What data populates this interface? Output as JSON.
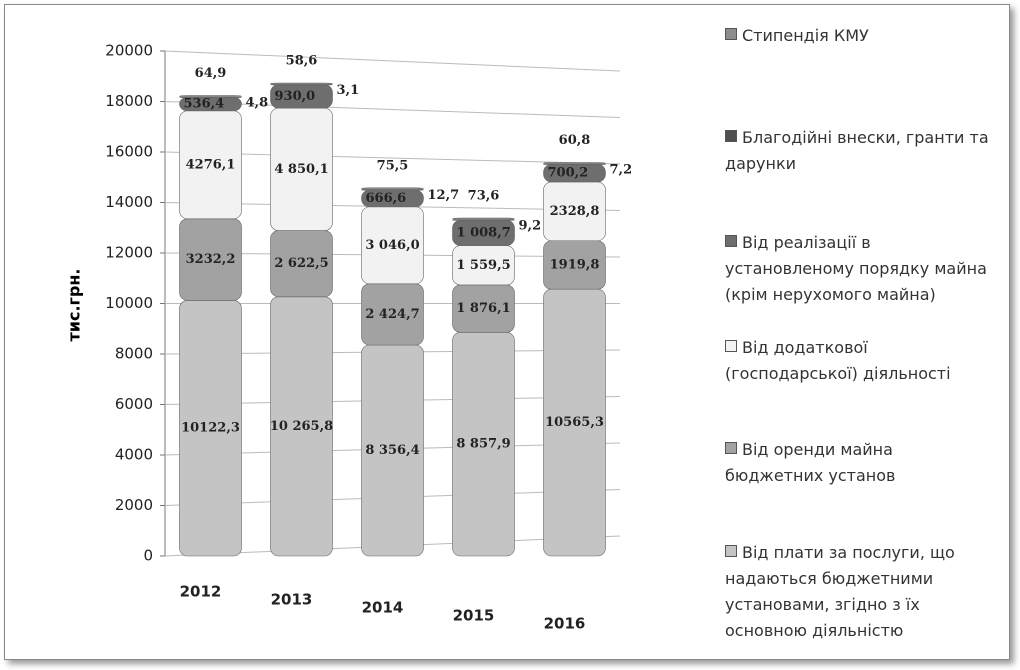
{
  "chart_data": {
    "type": "bar",
    "stacked": true,
    "ylabel": "тис.грн.",
    "categories": [
      "2012",
      "2013",
      "2014",
      "2015",
      "2016"
    ],
    "series": [
      {
        "name": "Від плати за послуги, що надаються бюджетними установами, згідно з їх основною діяльністю",
        "color": "#c4c4c4",
        "values": [
          10122.3,
          10265.8,
          8356.4,
          8857.9,
          10565.3
        ],
        "value_labels": [
          "10122,3",
          "10 265,8",
          "8 356,4",
          "8 857,9",
          "10565,3"
        ]
      },
      {
        "name": "Від оренди майна бюджетних установ",
        "color": "#a2a2a2",
        "values": [
          3232.2,
          2622.5,
          2424.7,
          1876.1,
          1919.8
        ],
        "value_labels": [
          "3232,2",
          "2 622,5",
          "2 424,7",
          "1 876,1",
          "1919,8"
        ]
      },
      {
        "name": "Від додаткової (господарської) діяльності",
        "color": "#f2f2f2",
        "values": [
          4276.1,
          4850.1,
          3046.0,
          1559.5,
          2328.8
        ],
        "value_labels": [
          "4276,1",
          "4 850,1",
          "3 046,0",
          "1 559,5",
          "2328,8"
        ]
      },
      {
        "name": "Від реалізації в установленому порядку майна (крім нерухомого майна)",
        "color": "#6e6e6e",
        "values": [
          536.4,
          930.0,
          666.6,
          1008.7,
          700.2
        ],
        "value_labels": [
          "536,4",
          "930,0",
          "666,6",
          "1 008,7",
          "700,2"
        ]
      },
      {
        "name": "Благодійні внески, гранти та дарунки",
        "color": "#4f4f4f",
        "values": [
          4.8,
          3.1,
          12.7,
          9.2,
          7.2
        ],
        "value_labels": [
          "4,8",
          "3,1",
          "12,7",
          "9,2",
          "7,2"
        ]
      },
      {
        "name": "Стипендія КМУ",
        "color": "#8c8c8c",
        "values": [
          64.9,
          58.6,
          75.5,
          73.6,
          60.8
        ],
        "value_labels": [
          "64,9",
          "58,6",
          "75,5",
          "73,6",
          "60,8"
        ]
      }
    ],
    "ylim": [
      0,
      20000
    ],
    "yticks": [
      0,
      2000,
      4000,
      6000,
      8000,
      10000,
      12000,
      14000,
      16000,
      18000,
      20000
    ],
    "grid": true,
    "legend": "right"
  }
}
